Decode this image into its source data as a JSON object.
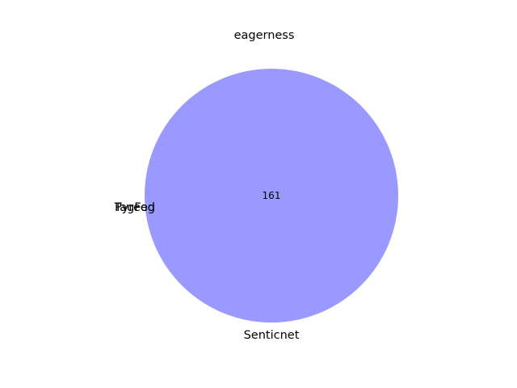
{
  "title": "eagerness",
  "sets": [
    {
      "name": "TagFed"
    },
    {
      "name": "Pyreog"
    },
    {
      "name": "Senticnet"
    }
  ],
  "regions": [
    {
      "label": "161",
      "color": "#9999ff"
    }
  ]
}
